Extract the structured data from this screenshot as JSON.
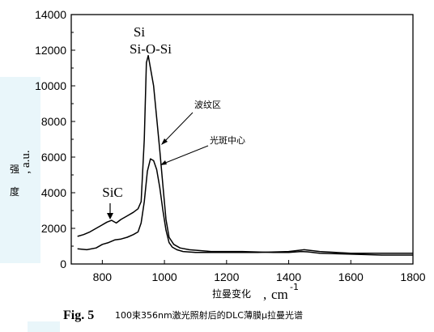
{
  "chart_data": {
    "type": "line",
    "xlabel_cn": "拉曼变化",
    "xlabel_unit": "cm",
    "xlabel_sup": "-1",
    "ylabel_chars": [
      "强",
      "度"
    ],
    "ylabel_unit": ", a.u.",
    "xlim": [
      700,
      1800
    ],
    "ylim": [
      0,
      14000
    ],
    "xticks": [
      800,
      1000,
      1200,
      1400,
      1600,
      1800
    ],
    "yticks": [
      0,
      2000,
      4000,
      6000,
      8000,
      10000,
      12000,
      14000
    ],
    "grid": false,
    "annotations": {
      "si": "Si",
      "sioSi": "Si-O-Si",
      "sic": "SiC",
      "wave": "波纹区",
      "spot": "光斑中心"
    },
    "series": [
      {
        "name": "波纹区",
        "x": [
          720,
          740,
          760,
          780,
          800,
          815,
          830,
          845,
          860,
          880,
          900,
          915,
          925,
          935,
          942,
          948,
          955,
          965,
          975,
          985,
          995,
          1005,
          1015,
          1030,
          1050,
          1080,
          1150,
          1250,
          1350,
          1400,
          1440,
          1460,
          1500,
          1600,
          1700,
          1800
        ],
        "y": [
          1550,
          1650,
          1800,
          2000,
          2200,
          2350,
          2450,
          2300,
          2500,
          2700,
          2900,
          3100,
          3500,
          7000,
          11300,
          11700,
          11000,
          10000,
          8200,
          6400,
          4400,
          2500,
          1500,
          1100,
          900,
          800,
          700,
          700,
          650,
          650,
          700,
          680,
          600,
          550,
          500,
          500
        ]
      },
      {
        "name": "光斑中心",
        "x": [
          720,
          750,
          780,
          800,
          820,
          840,
          860,
          880,
          900,
          915,
          925,
          935,
          945,
          955,
          965,
          975,
          985,
          995,
          1005,
          1015,
          1025,
          1040,
          1060,
          1100,
          1200,
          1300,
          1400,
          1450,
          1500,
          1600,
          1700,
          1800
        ],
        "y": [
          850,
          800,
          900,
          1100,
          1200,
          1350,
          1400,
          1500,
          1650,
          1800,
          2300,
          3500,
          5200,
          5900,
          5800,
          5300,
          4300,
          3000,
          1900,
          1200,
          950,
          800,
          700,
          650,
          650,
          650,
          700,
          800,
          700,
          600,
          600,
          600
        ]
      }
    ]
  },
  "caption": {
    "fig_label": "Fig. 5",
    "text": "100束356nm激光照射后的DLC薄膜μ拉曼光谱"
  }
}
